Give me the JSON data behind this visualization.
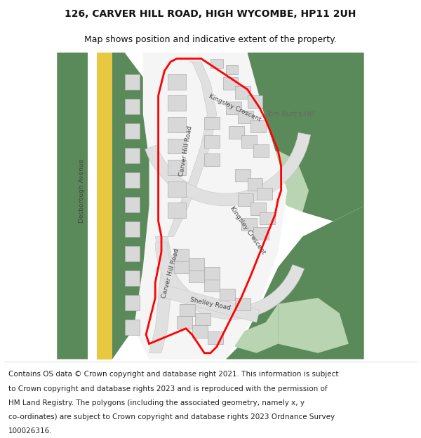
{
  "title": "126, CARVER HILL ROAD, HIGH WYCOMBE, HP11 2UH",
  "subtitle": "Map shows position and indicative extent of the property.",
  "footer_lines": [
    "Contains OS data © Crown copyright and database right 2021. This information is subject",
    "to Crown copyright and database rights 2023 and is reproduced with the permission of",
    "HM Land Registry. The polygons (including the associated geometry, namely x, y",
    "co-ordinates) are subject to Crown copyright and database rights 2023 Ordnance Survey",
    "100026316."
  ],
  "title_fontsize": 10,
  "subtitle_fontsize": 9,
  "footer_fontsize": 7.5,
  "bg_color": "#ffffff",
  "map_bg_color": "#f0f0f0",
  "green_dark": "#5a8a5a",
  "green_light": "#b8d4b0",
  "road_color": "#e0e0e0",
  "building_color": "#d8d8d8",
  "building_outline": "#aaaaaa",
  "red_boundary": "#ff0000",
  "yellow_road": "#e8c840",
  "road_outline": "#cccccc",
  "road_label_color": "#444444"
}
